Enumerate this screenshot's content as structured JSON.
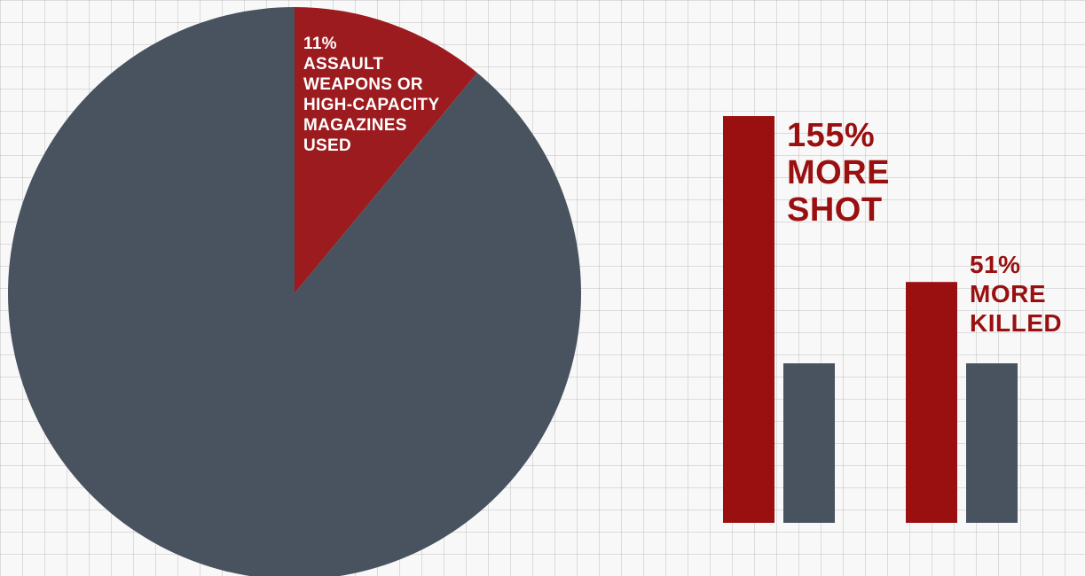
{
  "colors": {
    "accent_red": "#9a1010",
    "slice_red": "#9c1b1f",
    "slate": "#48535f",
    "label_white": "#ffffff"
  },
  "chart_data": [
    {
      "type": "pie",
      "slices": [
        {
          "label": "11% ASSAULT WEAPONS OR HIGH-CAPACITY MAGAZINES USED",
          "value": 11,
          "color": "#9c1b1f"
        },
        {
          "label": "",
          "value": 89,
          "color": "#48535f"
        }
      ],
      "annotation_lines": [
        "11%",
        "ASSAULT",
        "WEAPONS OR",
        "HIGH-CAPACITY",
        "MAGAZINES",
        "USED"
      ]
    },
    {
      "type": "bar",
      "groups": [
        {
          "label_lines": [
            "155%",
            "MORE",
            "SHOT"
          ],
          "bars": [
            {
              "value": 255,
              "color": "#9a1010"
            },
            {
              "value": 100,
              "color": "#48535f"
            }
          ]
        },
        {
          "label_lines": [
            "51%",
            "MORE",
            "KILLED"
          ],
          "bars": [
            {
              "value": 151,
              "color": "#9a1010"
            },
            {
              "value": 100,
              "color": "#48535f"
            }
          ]
        }
      ]
    }
  ]
}
